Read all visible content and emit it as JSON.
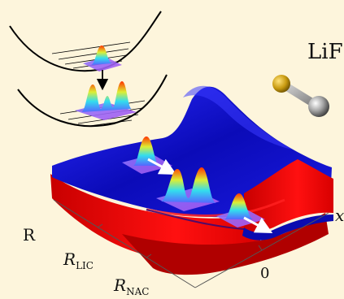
{
  "title_text": "LiF",
  "axis_labels": {
    "r": "R",
    "r_lic_main": "R",
    "r_lic_sub": "LIC",
    "r_nac_main": "R",
    "r_nac_sub": "NAC",
    "zero": "0",
    "x_partial": "x"
  },
  "colors": {
    "background": "#fdf5dc",
    "upper_surface": "#1010c8",
    "lower_surface": "#e01010",
    "lithium_atom": "#8a7a7a",
    "fluorine_atom": "#c89a10",
    "arrow": "#ffffff"
  },
  "icons": {
    "molecule": "lif-molecule-icon",
    "wavepacket": "wavepacket-icon"
  }
}
